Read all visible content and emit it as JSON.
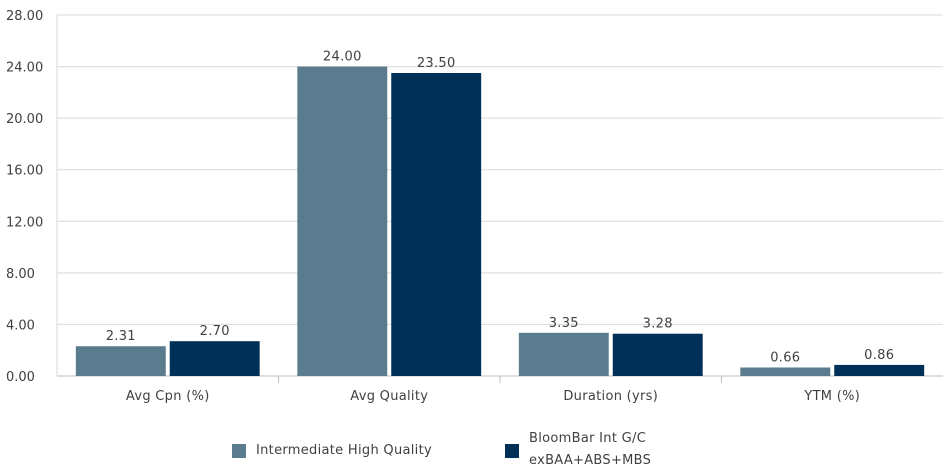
{
  "chart_data": {
    "type": "bar",
    "categories": [
      "Avg Cpn (%)",
      "Avg Quality",
      "Duration (yrs)",
      "YTM (%)"
    ],
    "series": [
      {
        "name": "Intermediate High Quality",
        "values": [
          2.31,
          24.0,
          3.35,
          0.66
        ],
        "labels": [
          "2.31",
          "24.00",
          "3.35",
          "0.66"
        ],
        "color": "#5b7b8f"
      },
      {
        "name_lines": [
          "BloomBar Int G/C",
          "exBAA+ABS+MBS"
        ],
        "values": [
          2.7,
          23.5,
          3.28,
          0.86
        ],
        "labels": [
          "2.70",
          "23.50",
          "3.28",
          "0.86"
        ],
        "color": "#003057"
      }
    ],
    "ylim": [
      0,
      28
    ],
    "yticks": [
      "0.00",
      "4.00",
      "8.00",
      "12.00",
      "16.00",
      "20.00",
      "24.00",
      "28.00"
    ],
    "grid": true,
    "legend_position": "bottom"
  }
}
